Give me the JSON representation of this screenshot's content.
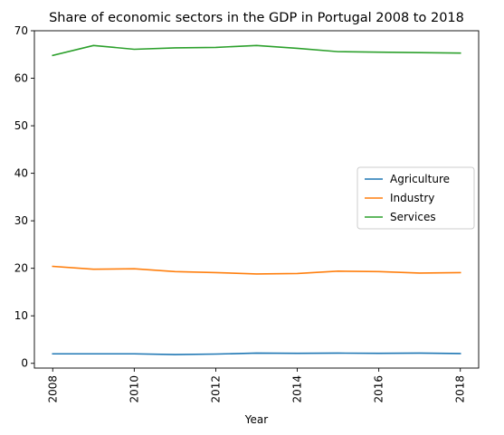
{
  "chart_data": {
    "type": "line",
    "title": "Share of economic sectors in the GDP in Portugal 2008 to 2018",
    "xlabel": "Year",
    "ylabel": "",
    "x": [
      2008,
      2009,
      2010,
      2011,
      2012,
      2013,
      2014,
      2015,
      2016,
      2017,
      2018
    ],
    "xlim": [
      2007.55,
      2018.45
    ],
    "ylim": [
      -1.0,
      70.0
    ],
    "xticks": [
      2008,
      2010,
      2012,
      2014,
      2016,
      2018
    ],
    "yticks": [
      0,
      10,
      20,
      30,
      40,
      50,
      60,
      70
    ],
    "grid": false,
    "legend_position": "center-right",
    "series": [
      {
        "name": "Agriculture",
        "color": "#1f77b4",
        "values": [
          2.0,
          2.0,
          2.0,
          1.85,
          1.95,
          2.15,
          2.1,
          2.15,
          2.1,
          2.15,
          2.05
        ]
      },
      {
        "name": "Industry",
        "color": "#ff7f0e",
        "values": [
          20.4,
          19.8,
          19.9,
          19.3,
          19.1,
          18.8,
          18.9,
          19.4,
          19.3,
          19.0,
          19.1
        ]
      },
      {
        "name": "Services",
        "color": "#2ca02c",
        "values": [
          64.8,
          66.9,
          66.1,
          66.4,
          66.5,
          66.9,
          66.3,
          65.6,
          65.5,
          65.4,
          65.3
        ]
      }
    ]
  }
}
